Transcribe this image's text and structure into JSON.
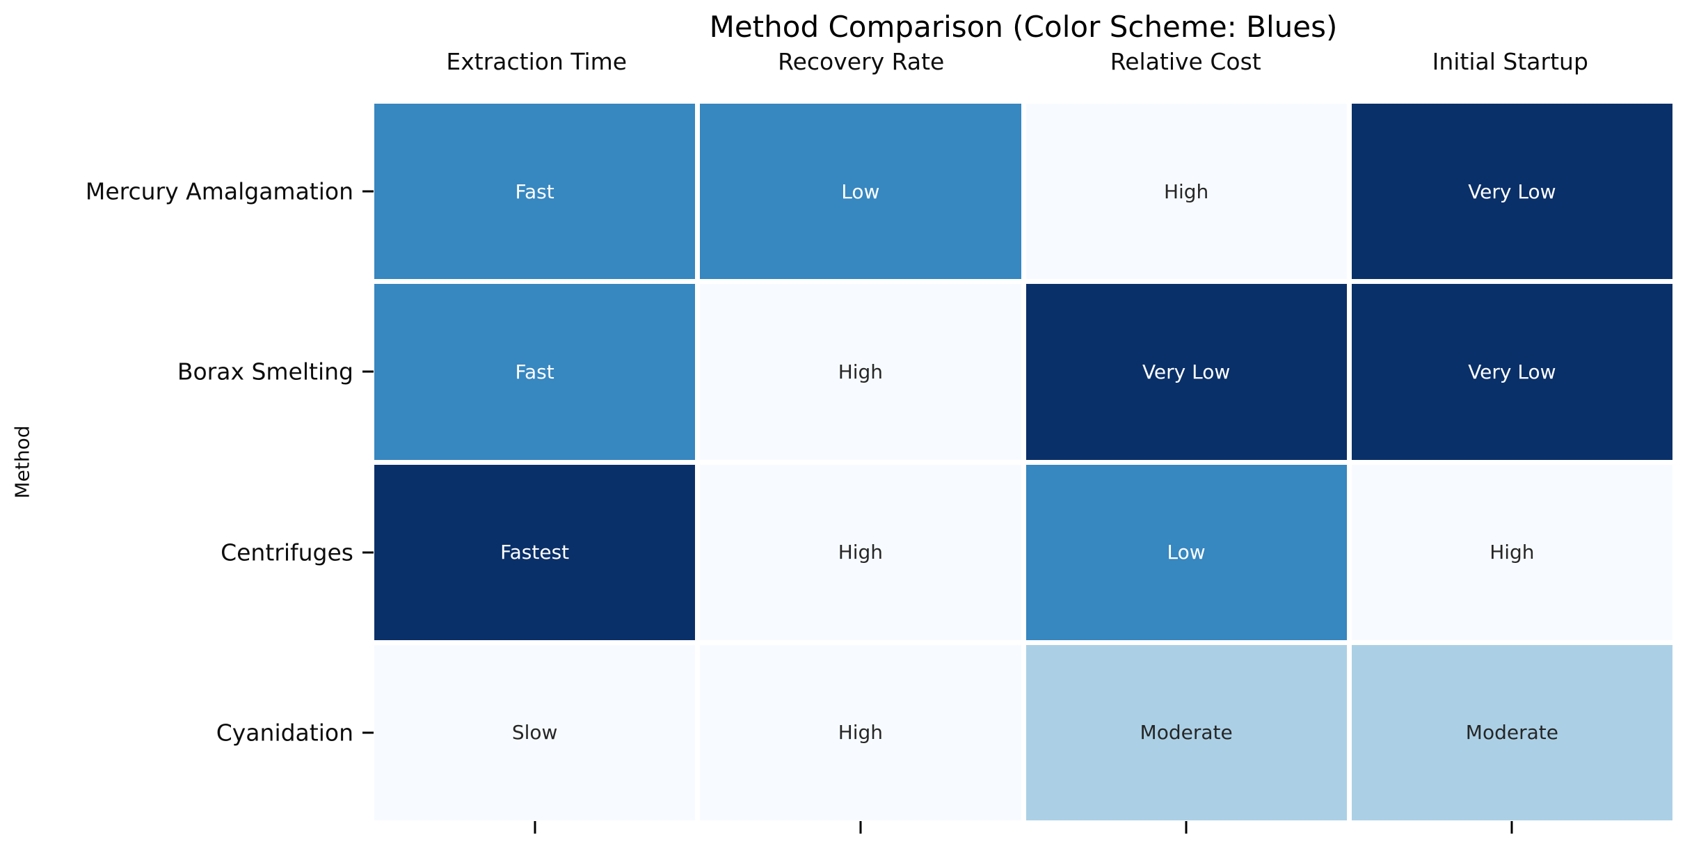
{
  "figure": {
    "title": "Method Comparison (Color Scheme: Blues)",
    "y_axis_label": "Method"
  },
  "chart_data": {
    "type": "heatmap",
    "title": "Method Comparison (Color Scheme: Blues)",
    "xlabel": "",
    "ylabel": "Method",
    "colormap": "Blues",
    "legend": "none",
    "grid_line_color": "#ffffff",
    "tick_color": "#000000",
    "columns": [
      "Extraction Time",
      "Recovery Rate",
      "Relative Cost",
      "Initial Startup"
    ],
    "rows": [
      "Mercury Amalgamation",
      "Borax Smelting",
      "Centrifuges",
      "Cyanidation"
    ],
    "cell_labels": [
      [
        "Fast",
        "Low",
        "High",
        "Very Low"
      ],
      [
        "Fast",
        "High",
        "Very Low",
        "Very Low"
      ],
      [
        "Fastest",
        "High",
        "Low",
        "High"
      ],
      [
        "Slow",
        "High",
        "Moderate",
        "Moderate"
      ]
    ],
    "color_levels": [
      [
        0.6,
        0.6,
        0.02,
        1.0
      ],
      [
        0.6,
        0.02,
        1.0,
        1.0
      ],
      [
        1.0,
        0.02,
        0.6,
        0.02
      ],
      [
        0.02,
        0.02,
        0.3,
        0.3
      ]
    ],
    "palette": {
      "lightest": "#f7fbff",
      "light": "#abd0e6",
      "medium": "#3787c0",
      "dark": "#0a3069"
    },
    "cells": [
      [
        {
          "label": "Fast",
          "bg": "#3787c0",
          "fg": "#ffffff"
        },
        {
          "label": "Low",
          "bg": "#3787c0",
          "fg": "#ffffff"
        },
        {
          "label": "High",
          "bg": "#f7fbff",
          "fg": "#262626"
        },
        {
          "label": "Very Low",
          "bg": "#0a3069",
          "fg": "#ffffff"
        }
      ],
      [
        {
          "label": "Fast",
          "bg": "#3787c0",
          "fg": "#ffffff"
        },
        {
          "label": "High",
          "bg": "#f7fbff",
          "fg": "#262626"
        },
        {
          "label": "Very Low",
          "bg": "#0a3069",
          "fg": "#ffffff"
        },
        {
          "label": "Very Low",
          "bg": "#0a3069",
          "fg": "#ffffff"
        }
      ],
      [
        {
          "label": "Fastest",
          "bg": "#0a3069",
          "fg": "#ffffff"
        },
        {
          "label": "High",
          "bg": "#f7fbff",
          "fg": "#262626"
        },
        {
          "label": "Low",
          "bg": "#3787c0",
          "fg": "#ffffff"
        },
        {
          "label": "High",
          "bg": "#f7fbff",
          "fg": "#262626"
        }
      ],
      [
        {
          "label": "Slow",
          "bg": "#f7fbff",
          "fg": "#262626"
        },
        {
          "label": "High",
          "bg": "#f7fbff",
          "fg": "#262626"
        },
        {
          "label": "Moderate",
          "bg": "#abd0e6",
          "fg": "#262626"
        },
        {
          "label": "Moderate",
          "bg": "#abd0e6",
          "fg": "#262626"
        }
      ]
    ]
  }
}
